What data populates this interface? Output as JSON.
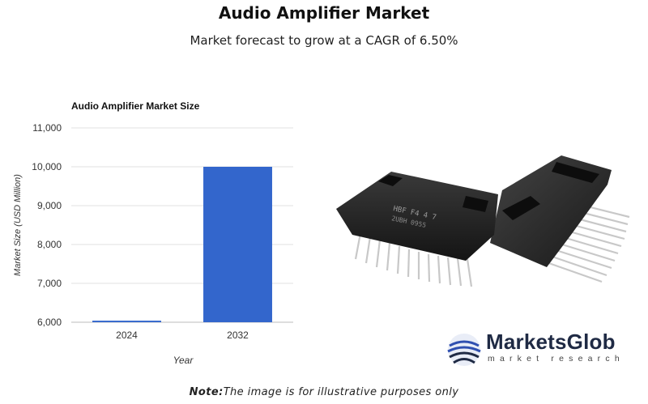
{
  "header": {
    "title": "Audio Amplifier Market",
    "subtitle": "Market forecast to grow at a CAGR of 6.50%"
  },
  "chart_data": {
    "type": "bar",
    "title": "Audio Amplifier Market Size",
    "xlabel": "Year",
    "ylabel": "Market Size (USD Million)",
    "categories": [
      "2024",
      "2032"
    ],
    "values": [
      6040,
      10000
    ],
    "ylim": [
      6000,
      11000
    ],
    "yticks": [
      6000,
      7000,
      8000,
      9000,
      10000,
      11000
    ],
    "ytick_labels": [
      "6,000",
      "7,000",
      "8,000",
      "9,000",
      "10,000",
      "11,000"
    ],
    "grid": true,
    "bar_color": "#3366cc"
  },
  "logo": {
    "name": "MarketsGlob",
    "tagline": "market research",
    "color": "#1f2a44",
    "accent": "#2f4fb0"
  },
  "note": {
    "label": "Note:",
    "text": "The image is for illustrative purposes only"
  },
  "image": {
    "icon": "amplifier-chip-image"
  }
}
